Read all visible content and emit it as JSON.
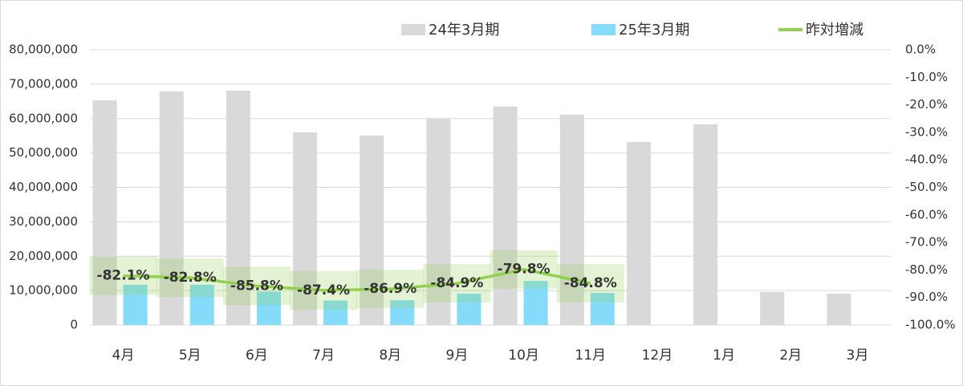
{
  "chart_data": {
    "type": "bar_line",
    "categories": [
      "4月",
      "5月",
      "6月",
      "7月",
      "8月",
      "9月",
      "10月",
      "11月",
      "12月",
      "1月",
      "2月",
      "3月"
    ],
    "series": [
      {
        "name": "24年3月期",
        "type": "bar",
        "color": "#d9d9d9",
        "values": [
          65300000,
          67900000,
          68100000,
          56000000,
          55100000,
          60000000,
          63500000,
          61100000,
          53200000,
          58300000,
          9600000,
          9100000
        ]
      },
      {
        "name": "25年3月期",
        "type": "bar",
        "color": "#84dcfa",
        "values": [
          11700000,
          11700000,
          9700000,
          7100000,
          7200000,
          9100000,
          12800000,
          9300000,
          null,
          null,
          null,
          null
        ]
      },
      {
        "name": "昨対増減",
        "type": "line",
        "axis": "y2",
        "color": "#92d050",
        "values": [
          -82.1,
          -82.8,
          -85.8,
          -87.4,
          -86.9,
          -84.9,
          -79.8,
          -84.8,
          null,
          null,
          null,
          null
        ],
        "value_labels": [
          "-82.1%",
          "-82.8%",
          "-85.8%",
          "-87.4%",
          "-86.9%",
          "-84.9%",
          "-79.8%",
          "-84.8%",
          null,
          null,
          null,
          null
        ]
      }
    ],
    "ylim": [
      0,
      80000000
    ],
    "yticks": [
      0,
      {
        "value": 10000000,
        "label": "10,000,000"
      },
      {
        "value": 20000000,
        "label": "20,000,000"
      },
      {
        "value": 30000000,
        "label": "30,000,000"
      },
      {
        "value": 40000000,
        "label": "40,000,000"
      },
      {
        "value": 50000000,
        "label": "50,000,000"
      },
      {
        "value": 60000000,
        "label": "60,000,000"
      },
      {
        "value": 70000000,
        "label": "70,000,000"
      },
      {
        "value": 80000000,
        "label": "80,000,000"
      }
    ],
    "y2lim": [
      -100,
      0
    ],
    "y2ticks": [
      {
        "value": 0,
        "label": "0.0%"
      },
      {
        "value": -10,
        "label": "-10.0%"
      },
      {
        "value": -20,
        "label": "-20.0%"
      },
      {
        "value": -30,
        "label": "-30.0%"
      },
      {
        "value": -40,
        "label": "-40.0%"
      },
      {
        "value": -50,
        "label": "-50.0%"
      },
      {
        "value": -60,
        "label": "-60.0%"
      },
      {
        "value": -70,
        "label": "-70.0%"
      },
      {
        "value": -80,
        "label": "-80.0%"
      },
      {
        "value": -90,
        "label": "-90.0%"
      },
      {
        "value": -100,
        "label": "-100.0%"
      }
    ],
    "grid": true,
    "legend": "top"
  }
}
